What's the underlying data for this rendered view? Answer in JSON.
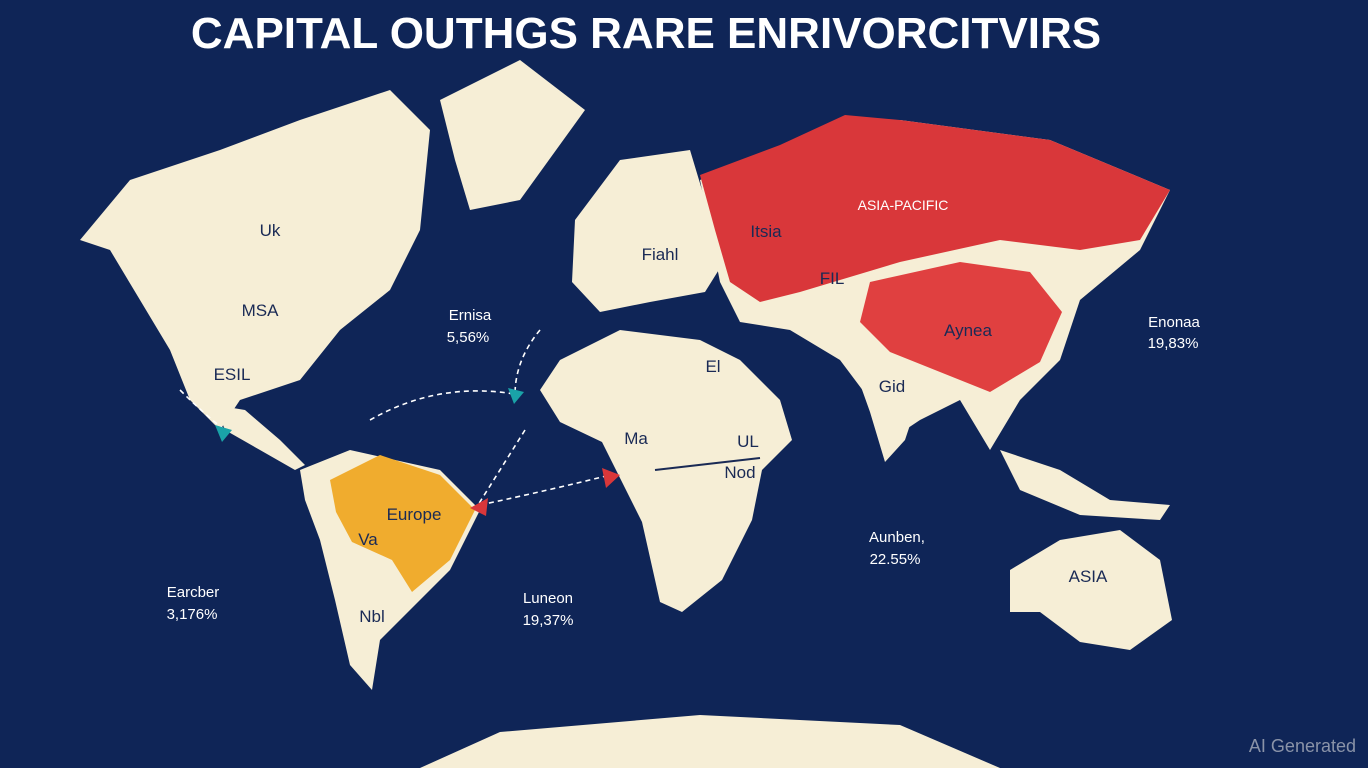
{
  "title": "CAPITAL OUTHGS RARE ENRIVORCITVIRS",
  "labels": [
    "Uk",
    "MSA",
    "Ernisa",
    "5,56%",
    "ESIL",
    "Europe",
    "Va",
    "Earcber",
    "3,176%",
    "Nbl",
    "Luneon",
    "19,37%",
    "El",
    "Ma",
    "UL",
    "Nod",
    "Aunben,",
    "22.55%",
    "ASIA",
    "ASIA-PACIFIC",
    "Itsia",
    "Aynea",
    "Enonaa",
    "19,83%",
    "Gid",
    "FIL",
    "Fiahl"
  ],
  "watermark": "AI Generated"
}
